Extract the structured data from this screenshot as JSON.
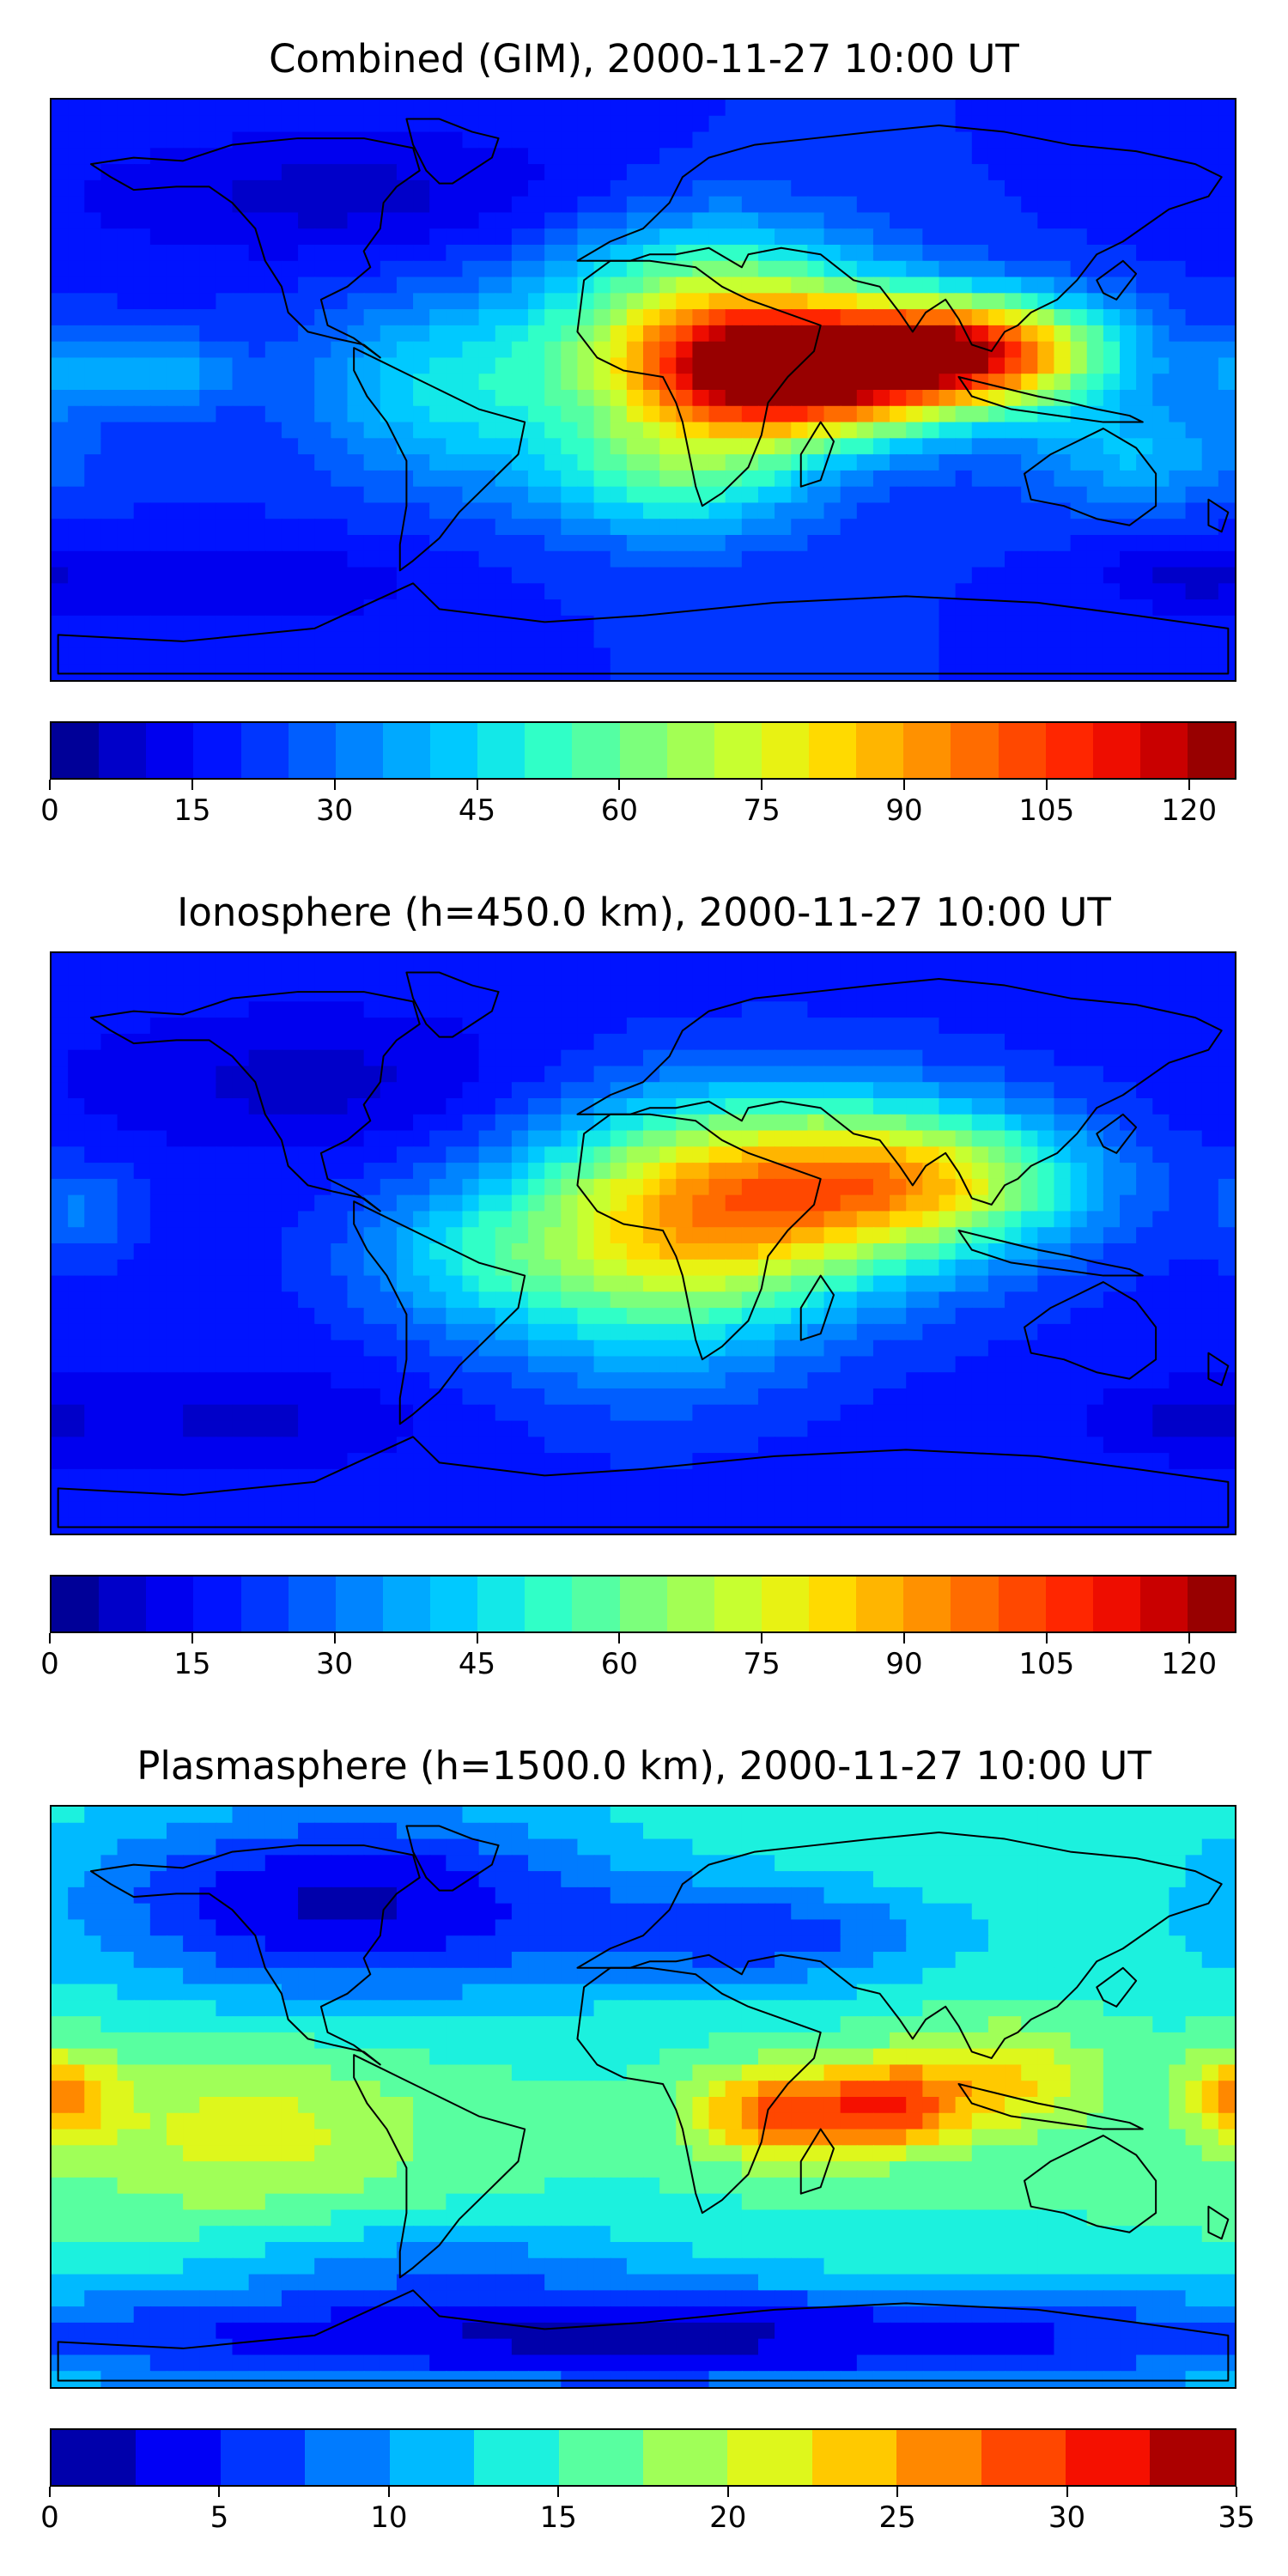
{
  "panels": [
    {
      "title": "Combined (GIM), 2000-11-27 10:00 UT",
      "colorbar": {
        "min": 0,
        "max": 125,
        "bins": 25,
        "ticks": [
          "0",
          "15",
          "30",
          "45",
          "60",
          "75",
          "90",
          "105",
          "120"
        ],
        "tick_values": [
          0,
          15,
          30,
          45,
          60,
          75,
          90,
          105,
          120
        ]
      },
      "field": {
        "background_level": 20,
        "features": [
          {
            "lon": 45,
            "lat": 5,
            "amp": 95,
            "slon": 35,
            "slat": 14
          },
          {
            "lon": 100,
            "lat": 12,
            "amp": 80,
            "slon": 30,
            "slat": 12
          },
          {
            "lon": 20,
            "lat": 25,
            "amp": 45,
            "slon": 35,
            "slat": 20
          },
          {
            "lon": 10,
            "lat": -25,
            "amp": 35,
            "slon": 30,
            "slat": 15
          },
          {
            "lon": -60,
            "lat": 0,
            "amp": 25,
            "slon": 30,
            "slat": 20
          },
          {
            "lon": -170,
            "lat": 5,
            "amp": 18,
            "slon": 15,
            "slat": 8
          },
          {
            "lon": -140,
            "lat": 5,
            "amp": 15,
            "slon": 12,
            "slat": 8
          },
          {
            "lon": 150,
            "lat": -20,
            "amp": 20,
            "slon": 25,
            "slat": 12
          },
          {
            "lon": -90,
            "lat": 60,
            "amp": -12,
            "slon": 60,
            "slat": 15
          },
          {
            "lon": -120,
            "lat": -60,
            "amp": -10,
            "slon": 40,
            "slat": 10
          },
          {
            "lon": 165,
            "lat": -58,
            "amp": -10,
            "slon": 20,
            "slat": 8
          }
        ]
      }
    },
    {
      "title": "Ionosphere  (h=450.0 km), 2000-11-27 10:00 UT",
      "colorbar": {
        "min": 0,
        "max": 125,
        "bins": 25,
        "ticks": [
          "0",
          "15",
          "30",
          "45",
          "60",
          "75",
          "90",
          "105",
          "120"
        ],
        "tick_values": [
          0,
          15,
          30,
          45,
          60,
          75,
          90,
          105,
          120
        ]
      },
      "field": {
        "background_level": 18,
        "features": [
          {
            "lon": 35,
            "lat": 15,
            "amp": 62,
            "slon": 45,
            "slat": 22
          },
          {
            "lon": 90,
            "lat": 20,
            "amp": 40,
            "slon": 35,
            "slat": 15
          },
          {
            "lon": 0,
            "lat": -10,
            "amp": 30,
            "slon": 35,
            "slat": 25
          },
          {
            "lon": -55,
            "lat": -5,
            "amp": 18,
            "slon": 25,
            "slat": 15
          },
          {
            "lon": -170,
            "lat": 10,
            "amp": 12,
            "slon": 12,
            "slat": 10
          },
          {
            "lon": -100,
            "lat": 50,
            "amp": -10,
            "slon": 50,
            "slat": 15
          },
          {
            "lon": -120,
            "lat": -55,
            "amp": -9,
            "slon": 40,
            "slat": 10
          },
          {
            "lon": 165,
            "lat": -55,
            "amp": -9,
            "slon": 20,
            "slat": 8
          }
        ]
      }
    },
    {
      "title": "Plasmasphere (h=1500.0 km), 2000-11-27 10:00 UT",
      "colorbar": {
        "min": 0,
        "max": 35,
        "bins": 14,
        "ticks": [
          "0",
          "5",
          "10",
          "15",
          "20",
          "25",
          "30",
          "35"
        ],
        "tick_values": [
          0,
          5,
          10,
          15,
          20,
          25,
          30,
          35
        ]
      },
      "field": {
        "background_level": 15,
        "features": [
          {
            "lon": 40,
            "lat": -5,
            "amp": 13,
            "slon": 18,
            "slat": 10
          },
          {
            "lon": 75,
            "lat": -3,
            "amp": 13,
            "slon": 15,
            "slat": 10
          },
          {
            "lon": 110,
            "lat": 5,
            "amp": 8,
            "slon": 20,
            "slat": 12
          },
          {
            "lon": -178,
            "lat": 0,
            "amp": 10,
            "slon": 12,
            "slat": 10
          },
          {
            "lon": -120,
            "lat": -10,
            "amp": 6,
            "slon": 40,
            "slat": 20
          },
          {
            "lon": -90,
            "lat": 60,
            "amp": -13,
            "slon": 60,
            "slat": 22
          },
          {
            "lon": 40,
            "lat": 50,
            "amp": -8,
            "slon": 40,
            "slat": 12
          },
          {
            "lon": 0,
            "lat": -75,
            "amp": -13,
            "slon": 180,
            "slat": 12
          },
          {
            "lon": -60,
            "lat": -50,
            "amp": -5,
            "slon": 50,
            "slat": 10
          }
        ]
      }
    }
  ],
  "colormap": [
    "#00007f",
    "#0000c8",
    "#0000ff",
    "#0033ff",
    "#006dff",
    "#00a4ff",
    "#00d4ff",
    "#29ffce",
    "#5eff9a",
    "#9aff5e",
    "#ceff29",
    "#ffe600",
    "#ffb000",
    "#ff7a00",
    "#ff4500",
    "#ff1300",
    "#c80000",
    "#7f0000"
  ],
  "coastline_color": "#000000"
}
